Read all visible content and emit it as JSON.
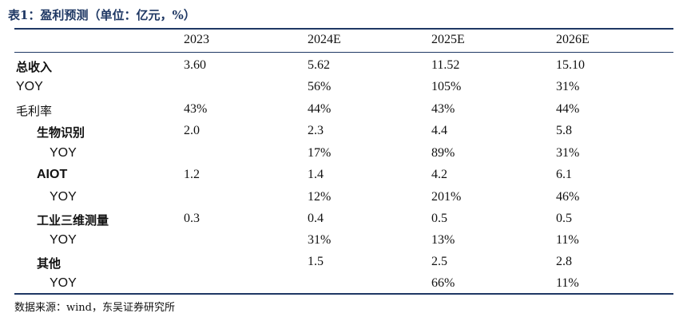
{
  "title": "表1：盈利预测（单位：亿元，%）",
  "header": {
    "years": [
      "2023",
      "2024E",
      "2025E",
      "2026E"
    ]
  },
  "rows": [
    {
      "label": "总收入",
      "values": [
        "3.60",
        "5.62",
        "11.52",
        "15.10"
      ]
    },
    {
      "label": "YOY",
      "values": [
        "",
        "56%",
        "105%",
        "31%"
      ]
    },
    {
      "label": "毛利率",
      "values": [
        "43%",
        "44%",
        "43%",
        "44%"
      ]
    },
    {
      "label": "生物识别",
      "values": [
        "2.0",
        "2.3",
        "4.4",
        "5.8"
      ]
    },
    {
      "label": "YOY",
      "values": [
        "",
        "17%",
        "89%",
        "31%"
      ]
    },
    {
      "label": "AIOT",
      "values": [
        "1.2",
        "1.4",
        "4.2",
        "6.1"
      ]
    },
    {
      "label": "YOY",
      "values": [
        "",
        "12%",
        "201%",
        "46%"
      ]
    },
    {
      "label": "工业三维测量",
      "values": [
        "0.3",
        "0.4",
        "0.5",
        "0.5"
      ]
    },
    {
      "label": "YOY",
      "values": [
        "",
        "31%",
        "13%",
        "11%"
      ]
    },
    {
      "label": "其他",
      "values": [
        "",
        "1.5",
        "2.5",
        "2.8"
      ]
    },
    {
      "label": "YOY",
      "values": [
        "",
        "",
        "66%",
        "11%"
      ]
    }
  ],
  "source": "数据来源：wind，东吴证券研究所",
  "colors": {
    "title": "#1f3864",
    "rules": "#1f3864",
    "text": "#111111"
  }
}
